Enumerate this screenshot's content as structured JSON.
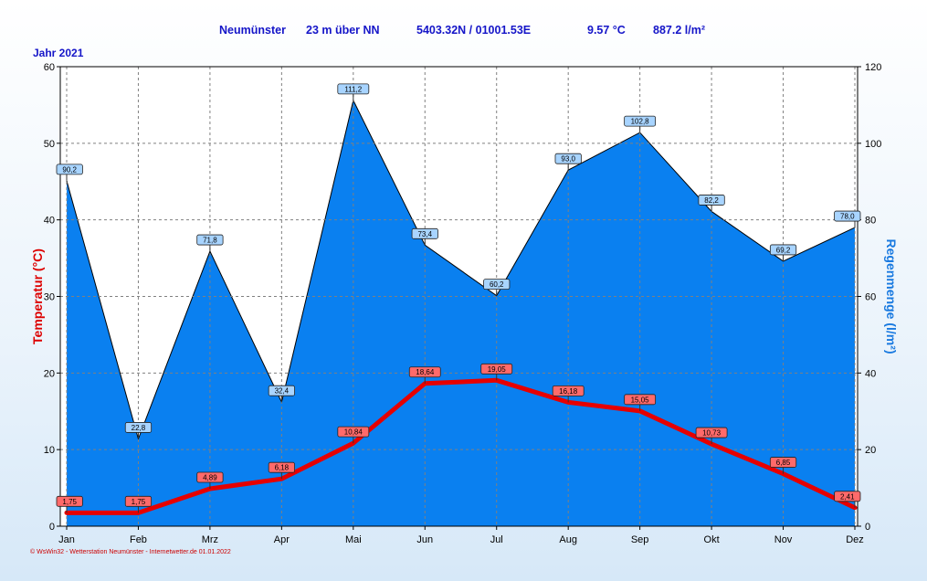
{
  "header": {
    "station": "Neumünster",
    "altitude": "23 m über NN",
    "coordinates": "5403.32N / 01001.53E",
    "temp_mean": "9.57 °C",
    "rain_total": "887.2 l/m²"
  },
  "year_label": "Jahr  2021",
  "footer": "© WsWin32 - Wetterstation Neumünster - Internetwetter.de  01.01.2022",
  "colors": {
    "temperature": "#e60000",
    "rain_fill": "#0a80f0",
    "rain_line": "#000000",
    "plot_bg": "#ffffff",
    "axis_left_title": "#dd0000",
    "axis_right_title": "#1a7ae0"
  },
  "chart_data": {
    "type": "area",
    "categories": [
      "Jan",
      "Feb",
      "Mrz",
      "Apr",
      "Mai",
      "Jun",
      "Jul",
      "Aug",
      "Sep",
      "Okt",
      "Nov",
      "Dez"
    ],
    "series": [
      {
        "name": "Regenmenge",
        "axis": "right",
        "chart_type": "area",
        "values": [
          90.2,
          22.8,
          71.8,
          32.4,
          111.2,
          73.4,
          60.2,
          93.0,
          102.8,
          82.2,
          69.2,
          78.0
        ],
        "labels": [
          "90,2",
          "22,8",
          "71,8",
          "32,4",
          "111,2",
          "73,4",
          "60,2",
          "93,0",
          "102,8",
          "82,2",
          "69,2",
          "78,0"
        ]
      },
      {
        "name": "Temperatur",
        "axis": "left",
        "chart_type": "line",
        "values": [
          1.75,
          1.75,
          4.89,
          6.18,
          10.84,
          18.64,
          19.05,
          16.18,
          15.05,
          10.73,
          6.85,
          2.41
        ],
        "labels": [
          "1,75",
          "1,75",
          "4,89",
          "6,18",
          "10,84",
          "18,64",
          "19,05",
          "16,18",
          "15,05",
          "10,73",
          "6,85",
          "2,41"
        ]
      }
    ],
    "y_left": {
      "label": "Temperatur  (°C)",
      "ylim": [
        0,
        60
      ],
      "ticks": [
        "0",
        "10",
        "20",
        "30",
        "40",
        "50",
        "60"
      ]
    },
    "y_right": {
      "label": "Regenmenge  (l/m²)",
      "ylim": [
        0,
        120
      ],
      "ticks": [
        "0",
        "20",
        "40",
        "60",
        "80",
        "100",
        "120"
      ]
    },
    "grid": true
  }
}
